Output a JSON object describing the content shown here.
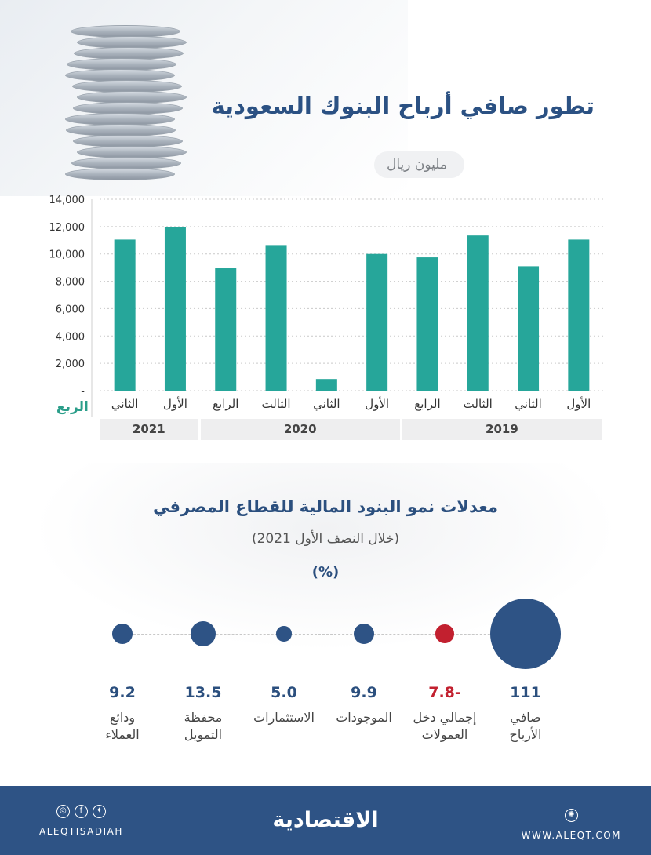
{
  "header": {
    "title": "تطور صافي أرباح البنوك السعودية",
    "unit": "مليون ريال"
  },
  "chart_data": [
    {
      "type": "bar",
      "title": "تطور صافي أرباح البنوك السعودية",
      "ylabel": "مليون ريال",
      "xlabel": "الربع",
      "ylim": [
        0,
        14000
      ],
      "y_ticks": [
        "-",
        "2,000",
        "4,000",
        "6,000",
        "8,000",
        "10,000",
        "12,000",
        "14,000"
      ],
      "grid": true,
      "categories": [
        "الأول",
        "الثاني",
        "الثالث",
        "الرابع",
        "الأول",
        "الثاني",
        "الثالث",
        "الرابع",
        "الأول",
        "الثاني"
      ],
      "groups": [
        {
          "label": "2019",
          "count": 4
        },
        {
          "label": "2020",
          "count": 4
        },
        {
          "label": "2021",
          "count": 2
        }
      ],
      "values": [
        11050,
        9100,
        11350,
        9750,
        10000,
        850,
        10650,
        8950,
        11980,
        11050
      ],
      "color": "#26a69a"
    },
    {
      "type": "bubble",
      "title": "معدلات نمو البنود المالية للقطاع المصرفي",
      "subtitle": "(خلال النصف الأول 2021)",
      "unit": "(%)",
      "items": [
        {
          "label_line1": "صافي",
          "label_line2": "الأرباح",
          "value": 111,
          "display": "111",
          "color": "#2e5385"
        },
        {
          "label_line1": "إجمالي دخل",
          "label_line2": "العمولات",
          "value": -7.8,
          "display": "7.8-",
          "color": "#c2202f"
        },
        {
          "label_line1": "الموجودات",
          "label_line2": "",
          "value": 9.9,
          "display": "9.9",
          "color": "#2e5385"
        },
        {
          "label_line1": "الاستثمارات",
          "label_line2": "",
          "value": 5.0,
          "display": "5.0",
          "color": "#2e5385"
        },
        {
          "label_line1": "محفظة",
          "label_line2": "التمويل",
          "value": 13.5,
          "display": "13.5",
          "color": "#2e5385"
        },
        {
          "label_line1": "ودائع",
          "label_line2": "العملاء",
          "value": 9.2,
          "display": "9.2",
          "color": "#2e5385"
        }
      ]
    }
  ],
  "footer": {
    "logo": "الاقتصادية",
    "handle": "ALEQTISADIAH",
    "url": "WWW.ALEQT.COM",
    "social_icons": [
      "instagram-icon",
      "facebook-icon",
      "twitter-icon"
    ],
    "web_icon": "globe-icon"
  }
}
